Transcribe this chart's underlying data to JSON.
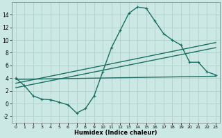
{
  "xlabel": "Humidex (Indice chaleur)",
  "bg_color": "#cce8e4",
  "grid_color": "#aaccc8",
  "line_color": "#1a6e62",
  "xlim": [
    -0.5,
    23.5
  ],
  "ylim": [
    -3.0,
    16.0
  ],
  "xticks": [
    0,
    1,
    2,
    3,
    4,
    5,
    6,
    7,
    8,
    9,
    10,
    11,
    12,
    13,
    14,
    15,
    16,
    17,
    18,
    19,
    20,
    21,
    22,
    23
  ],
  "yticks": [
    -2,
    0,
    2,
    4,
    6,
    8,
    10,
    12,
    14
  ],
  "main_x": [
    0,
    1,
    2,
    3,
    4,
    5,
    6,
    7,
    8,
    9,
    10,
    11,
    12,
    13,
    14,
    15,
    16,
    17,
    18,
    19,
    20,
    21,
    22,
    23
  ],
  "main_y": [
    4.0,
    2.8,
    1.2,
    0.7,
    0.6,
    0.2,
    -0.2,
    -1.5,
    -0.8,
    1.2,
    5.0,
    8.8,
    11.5,
    14.2,
    15.2,
    15.0,
    13.0,
    11.0,
    10.0,
    9.2,
    6.5,
    6.5,
    5.0,
    4.5
  ],
  "line1_x": [
    0,
    23
  ],
  "line1_y": [
    3.8,
    4.3
  ],
  "line2_x": [
    0,
    23
  ],
  "line2_y": [
    2.5,
    8.8
  ],
  "line3_x": [
    0,
    23
  ],
  "line3_y": [
    3.2,
    9.6
  ],
  "lw": 1.0,
  "ms": 2.5
}
